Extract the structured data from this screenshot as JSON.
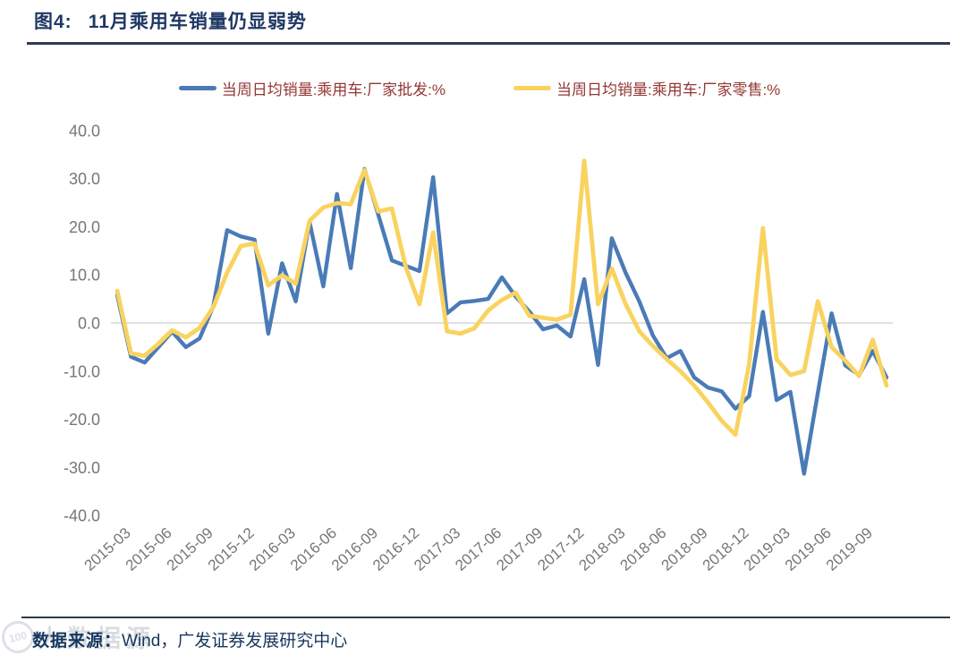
{
  "page": {
    "figure_label": "图4:",
    "figure_title": "11月乘用车销量仍显弱势",
    "source_label": "数据来源：",
    "source_text": "Wind，广发证券发展研究中心",
    "watermark_logo": "100",
    "watermark_text": "大数据源"
  },
  "colors": {
    "title_navy": "#1F3864",
    "legend_text_red": "#943634",
    "axis_label_gray": "#767676",
    "zero_gridline": "#D6D6D6",
    "rule_dark": "#2E3B52",
    "wholesale_blue": "#4A7BB7",
    "retail_yellow": "#F9D35F"
  },
  "chart_data": {
    "type": "line",
    "title": "11月乘用车销量仍显弱势",
    "xlabel": "",
    "ylabel": "",
    "ylim": [
      -40,
      40
    ],
    "y_ticks": [
      40,
      30,
      20,
      10,
      0,
      -10,
      -20,
      -30,
      -40
    ],
    "grid": "zero-line-only",
    "legend_position": "top-center",
    "x": [
      "2015-03",
      "2015-04",
      "2015-05",
      "2015-06",
      "2015-07",
      "2015-08",
      "2015-09",
      "2015-10",
      "2015-11",
      "2015-12",
      "2016-01",
      "2016-02",
      "2016-03",
      "2016-04",
      "2016-05",
      "2016-06",
      "2016-07",
      "2016-08",
      "2016-09",
      "2016-10",
      "2016-11",
      "2016-12",
      "2017-01",
      "2017-02",
      "2017-03",
      "2017-04",
      "2017-05",
      "2017-06",
      "2017-07",
      "2017-08",
      "2017-09",
      "2017-10",
      "2017-11",
      "2017-12",
      "2018-01",
      "2018-02",
      "2018-03",
      "2018-04",
      "2018-05",
      "2018-06",
      "2018-07",
      "2018-08",
      "2018-09",
      "2018-10",
      "2018-11",
      "2018-12",
      "2019-01",
      "2019-02",
      "2019-03",
      "2019-04",
      "2019-05",
      "2019-06",
      "2019-07",
      "2019-08",
      "2019-09",
      "2019-10",
      "2019-11"
    ],
    "x_tick_labels": [
      "2015-03",
      "2015-06",
      "2015-09",
      "2015-12",
      "2016-03",
      "2016-06",
      "2016-09",
      "2016-12",
      "2017-03",
      "2017-06",
      "2017-09",
      "2017-12",
      "2018-03",
      "2018-06",
      "2018-09",
      "2018-12",
      "2019-03",
      "2019-06",
      "2019-09"
    ],
    "series": [
      {
        "name": "当周日均销量:乘用车:厂家批发:%",
        "color": "#4A7BB7",
        "stroke_width": 4.4,
        "values": [
          5.8,
          -7.0,
          -8.2,
          -5.0,
          -1.8,
          -5.0,
          -3.2,
          3.5,
          19.3,
          18.0,
          17.3,
          -2.2,
          12.4,
          4.5,
          21.0,
          7.6,
          26.8,
          11.4,
          32.0,
          22.5,
          13.0,
          11.9,
          10.8,
          30.3,
          2.0,
          4.3,
          4.6,
          5.0,
          9.5,
          5.5,
          2.4,
          -1.3,
          -0.5,
          -2.8,
          9.1,
          -8.7,
          17.6,
          10.5,
          4.5,
          -2.6,
          -7.3,
          -5.8,
          -11.3,
          -13.4,
          -14.2,
          -17.8,
          -15.2,
          2.3,
          -16.0,
          -14.3,
          -31.3,
          -14.5,
          2.0,
          -8.8,
          -10.8,
          -5.8,
          -11.3
        ]
      },
      {
        "name": "当周日均销量:乘用车:厂家零售:%",
        "color": "#F9D35F",
        "stroke_width": 4.8,
        "values": [
          6.7,
          -6.3,
          -6.8,
          -4.3,
          -1.5,
          -3.0,
          -1.0,
          3.3,
          10.5,
          16.0,
          16.5,
          7.8,
          9.9,
          8.2,
          21.2,
          24.0,
          24.9,
          24.7,
          31.8,
          23.2,
          23.8,
          11.7,
          3.9,
          18.8,
          -1.7,
          -2.2,
          -1.1,
          2.6,
          4.8,
          6.3,
          1.5,
          1.1,
          0.7,
          1.7,
          33.7,
          3.9,
          11.3,
          4.0,
          -1.7,
          -4.8,
          -7.5,
          -10.0,
          -13.0,
          -16.5,
          -20.3,
          -23.2,
          -8.6,
          19.7,
          -7.5,
          -10.8,
          -10.0,
          4.5,
          -5.0,
          -7.8,
          -11.0,
          -3.5,
          -13.0
        ]
      }
    ]
  }
}
